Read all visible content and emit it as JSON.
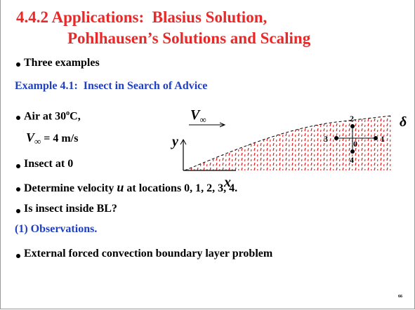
{
  "title": {
    "line1": "4.4.2 Applications:  Blasius Solution,",
    "line2": "Pohlhausen’s Solutions and Scaling"
  },
  "intro": "Three examples",
  "example_heading": "Example 4.1:  Insect in Search of Advice",
  "given": {
    "air": [
      "Air at 30",
      "o",
      "C,"
    ],
    "velocity": [
      "V",
      "∞",
      " = 4 m/s"
    ],
    "insect": "Insect at 0"
  },
  "tasks": {
    "determine": [
      "Determine velocity ",
      "u",
      " at locations 0, 1, 2, 3, 4."
    ],
    "inside": "Is insect inside BL?"
  },
  "section": "(1) Observations.",
  "problem": "External forced convection boundary layer problem",
  "diagram": {
    "free_stream": [
      "V",
      "∞"
    ],
    "y_axis": "y",
    "x_axis": "x",
    "thickness": "δ",
    "points": [
      "0",
      "1",
      "2",
      "3",
      "4"
    ]
  },
  "page_number": "66"
}
